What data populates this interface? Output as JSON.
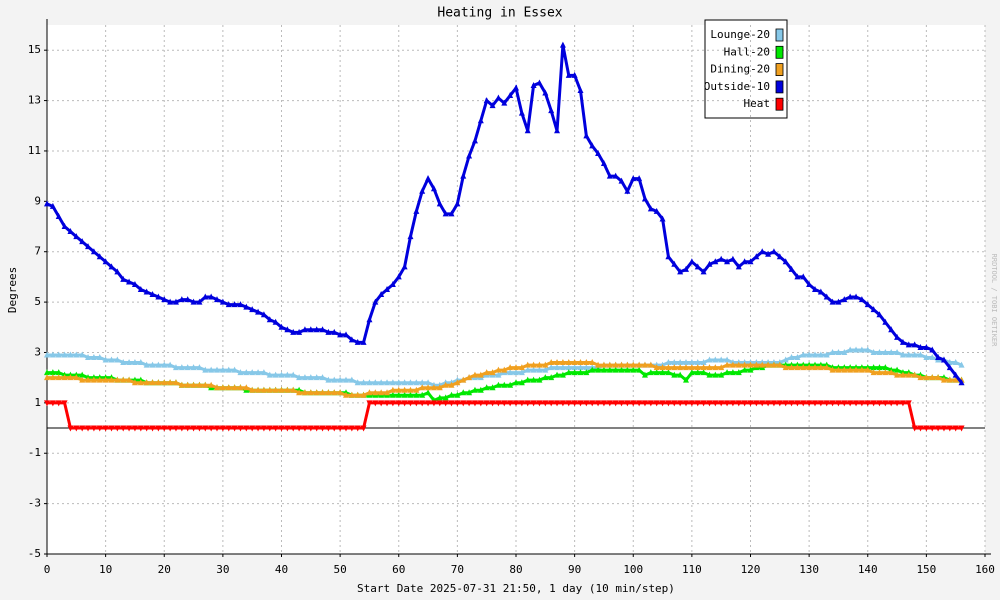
{
  "chart_data": {
    "type": "line",
    "title": "Heating in Essex",
    "y_label": "Degrees",
    "x_label": "Start Date 2025-07-31 21:50, 1 day (10 min/step)",
    "watermark": "RRDTOOL / TOBI OETIKER",
    "xlim": [
      0,
      160
    ],
    "ylim": [
      -5,
      16
    ],
    "xticks": [
      0,
      10,
      20,
      30,
      40,
      50,
      60,
      70,
      80,
      90,
      100,
      110,
      120,
      130,
      140,
      150,
      160
    ],
    "yticks": [
      -5,
      -3,
      -1,
      1,
      3,
      5,
      7,
      9,
      11,
      13,
      15
    ],
    "grid": true,
    "legend": "top-right",
    "x": [
      0,
      1,
      2,
      3,
      4,
      5,
      6,
      7,
      8,
      9,
      10,
      11,
      12,
      13,
      14,
      15,
      16,
      17,
      18,
      19,
      20,
      21,
      22,
      23,
      24,
      25,
      26,
      27,
      28,
      29,
      30,
      31,
      32,
      33,
      34,
      35,
      36,
      37,
      38,
      39,
      40,
      41,
      42,
      43,
      44,
      45,
      46,
      47,
      48,
      49,
      50,
      51,
      52,
      53,
      54,
      55,
      56,
      57,
      58,
      59,
      60,
      61,
      62,
      63,
      64,
      65,
      66,
      67,
      68,
      69,
      70,
      71,
      72,
      73,
      74,
      75,
      76,
      77,
      78,
      79,
      80,
      81,
      82,
      83,
      84,
      85,
      86,
      87,
      88,
      89,
      90,
      91,
      92,
      93,
      94,
      95,
      96,
      97,
      98,
      99,
      100,
      101,
      102,
      103,
      104,
      105,
      106,
      107,
      108,
      109,
      110,
      111,
      112,
      113,
      114,
      115,
      116,
      117,
      118,
      119,
      120,
      121,
      122,
      123,
      124,
      125,
      126,
      127,
      128,
      129,
      130,
      131,
      132,
      133,
      134,
      135,
      136,
      137,
      138,
      139,
      140,
      141,
      142,
      143,
      144,
      145,
      146,
      147,
      148,
      149,
      150,
      151,
      152,
      153,
      154,
      155,
      156
    ],
    "series": [
      {
        "name": "Lounge-20",
        "color": "#87c8e8",
        "marker": "triangle-up",
        "values": [
          2.9,
          2.9,
          2.9,
          2.9,
          2.9,
          2.9,
          2.9,
          2.8,
          2.8,
          2.8,
          2.7,
          2.7,
          2.7,
          2.6,
          2.6,
          2.6,
          2.6,
          2.5,
          2.5,
          2.5,
          2.5,
          2.5,
          2.4,
          2.4,
          2.4,
          2.4,
          2.4,
          2.3,
          2.3,
          2.3,
          2.3,
          2.3,
          2.3,
          2.2,
          2.2,
          2.2,
          2.2,
          2.2,
          2.1,
          2.1,
          2.1,
          2.1,
          2.1,
          2.0,
          2.0,
          2.0,
          2.0,
          2.0,
          1.9,
          1.9,
          1.9,
          1.9,
          1.9,
          1.8,
          1.8,
          1.8,
          1.8,
          1.8,
          1.8,
          1.8,
          1.8,
          1.8,
          1.8,
          1.8,
          1.8,
          1.8,
          1.7,
          1.7,
          1.8,
          1.8,
          1.9,
          1.9,
          2.0,
          2.0,
          2.0,
          2.1,
          2.1,
          2.1,
          2.2,
          2.2,
          2.2,
          2.2,
          2.3,
          2.3,
          2.3,
          2.3,
          2.4,
          2.4,
          2.4,
          2.4,
          2.4,
          2.4,
          2.4,
          2.4,
          2.4,
          2.5,
          2.5,
          2.5,
          2.5,
          2.5,
          2.5,
          2.5,
          2.5,
          2.5,
          2.5,
          2.5,
          2.6,
          2.6,
          2.6,
          2.6,
          2.6,
          2.6,
          2.6,
          2.7,
          2.7,
          2.7,
          2.7,
          2.6,
          2.6,
          2.6,
          2.6,
          2.6,
          2.6,
          2.6,
          2.6,
          2.6,
          2.7,
          2.8,
          2.8,
          2.9,
          2.9,
          2.9,
          2.9,
          2.9,
          3.0,
          3.0,
          3.0,
          3.1,
          3.1,
          3.1,
          3.1,
          3.0,
          3.0,
          3.0,
          3.0,
          3.0,
          2.9,
          2.9,
          2.9,
          2.9,
          2.8,
          2.8,
          2.7,
          2.7,
          2.6,
          2.6,
          2.5
        ]
      },
      {
        "name": "Hall-20",
        "color": "#00e800",
        "marker": "triangle-up",
        "values": [
          2.2,
          2.2,
          2.2,
          2.1,
          2.1,
          2.1,
          2.1,
          2.0,
          2.0,
          2.0,
          2.0,
          2.0,
          1.9,
          1.9,
          1.9,
          1.9,
          1.9,
          1.8,
          1.8,
          1.8,
          1.8,
          1.8,
          1.8,
          1.7,
          1.7,
          1.7,
          1.7,
          1.7,
          1.6,
          1.6,
          1.6,
          1.6,
          1.6,
          1.6,
          1.5,
          1.5,
          1.5,
          1.5,
          1.5,
          1.5,
          1.5,
          1.5,
          1.5,
          1.5,
          1.4,
          1.4,
          1.4,
          1.4,
          1.4,
          1.4,
          1.4,
          1.4,
          1.3,
          1.3,
          1.3,
          1.3,
          1.3,
          1.3,
          1.3,
          1.3,
          1.3,
          1.3,
          1.3,
          1.3,
          1.3,
          1.4,
          1.1,
          1.2,
          1.2,
          1.3,
          1.3,
          1.4,
          1.4,
          1.5,
          1.5,
          1.6,
          1.6,
          1.7,
          1.7,
          1.7,
          1.8,
          1.8,
          1.9,
          1.9,
          1.9,
          2.0,
          2.0,
          2.1,
          2.1,
          2.2,
          2.2,
          2.2,
          2.2,
          2.3,
          2.3,
          2.3,
          2.3,
          2.3,
          2.3,
          2.3,
          2.3,
          2.3,
          2.1,
          2.2,
          2.2,
          2.2,
          2.2,
          2.1,
          2.1,
          1.9,
          2.2,
          2.2,
          2.2,
          2.1,
          2.1,
          2.1,
          2.2,
          2.2,
          2.2,
          2.3,
          2.3,
          2.4,
          2.4,
          2.5,
          2.5,
          2.5,
          2.5,
          2.5,
          2.5,
          2.5,
          2.5,
          2.5,
          2.5,
          2.5,
          2.4,
          2.4,
          2.4,
          2.4,
          2.4,
          2.4,
          2.4,
          2.4,
          2.4,
          2.4,
          2.3,
          2.3,
          2.2,
          2.2,
          2.1,
          2.1,
          2.0,
          2.0,
          2.0,
          2.0,
          1.9,
          1.9,
          1.9
        ]
      },
      {
        "name": "Dining-20",
        "color": "#f0a020",
        "marker": "triangle-up",
        "values": [
          2.0,
          2.0,
          2.0,
          2.0,
          2.0,
          2.0,
          1.9,
          1.9,
          1.9,
          1.9,
          1.9,
          1.9,
          1.9,
          1.9,
          1.9,
          1.8,
          1.8,
          1.8,
          1.8,
          1.8,
          1.8,
          1.8,
          1.8,
          1.7,
          1.7,
          1.7,
          1.7,
          1.7,
          1.7,
          1.6,
          1.6,
          1.6,
          1.6,
          1.6,
          1.6,
          1.5,
          1.5,
          1.5,
          1.5,
          1.5,
          1.5,
          1.5,
          1.5,
          1.4,
          1.4,
          1.4,
          1.4,
          1.4,
          1.4,
          1.4,
          1.4,
          1.3,
          1.3,
          1.3,
          1.3,
          1.4,
          1.4,
          1.4,
          1.4,
          1.5,
          1.5,
          1.5,
          1.5,
          1.5,
          1.6,
          1.6,
          1.6,
          1.6,
          1.7,
          1.7,
          1.8,
          1.9,
          2.0,
          2.1,
          2.1,
          2.2,
          2.2,
          2.3,
          2.3,
          2.4,
          2.4,
          2.4,
          2.5,
          2.5,
          2.5,
          2.5,
          2.6,
          2.6,
          2.6,
          2.6,
          2.6,
          2.6,
          2.6,
          2.6,
          2.5,
          2.5,
          2.5,
          2.5,
          2.5,
          2.5,
          2.5,
          2.5,
          2.5,
          2.5,
          2.4,
          2.4,
          2.4,
          2.4,
          2.4,
          2.4,
          2.4,
          2.4,
          2.4,
          2.4,
          2.4,
          2.4,
          2.5,
          2.5,
          2.5,
          2.5,
          2.5,
          2.5,
          2.5,
          2.5,
          2.5,
          2.5,
          2.4,
          2.4,
          2.4,
          2.4,
          2.4,
          2.4,
          2.4,
          2.4,
          2.3,
          2.3,
          2.3,
          2.3,
          2.3,
          2.3,
          2.3,
          2.2,
          2.2,
          2.2,
          2.2,
          2.1,
          2.1,
          2.1,
          2.1,
          2.0,
          2.0,
          2.0,
          2.0,
          1.9,
          1.9,
          1.9,
          1.9
        ]
      },
      {
        "name": "Outside-10",
        "color": "#0000dd",
        "marker": "triangle-up",
        "values": [
          8.9,
          8.8,
          8.4,
          8.0,
          7.8,
          7.6,
          7.4,
          7.2,
          7.0,
          6.8,
          6.6,
          6.4,
          6.2,
          5.9,
          5.8,
          5.7,
          5.5,
          5.4,
          5.3,
          5.2,
          5.1,
          5.0,
          5.0,
          5.1,
          5.1,
          5.0,
          5.0,
          5.2,
          5.2,
          5.1,
          5.0,
          4.9,
          4.9,
          4.9,
          4.8,
          4.7,
          4.6,
          4.5,
          4.3,
          4.2,
          4.0,
          3.9,
          3.8,
          3.8,
          3.9,
          3.9,
          3.9,
          3.9,
          3.8,
          3.8,
          3.7,
          3.7,
          3.5,
          3.4,
          3.4,
          4.3,
          5.0,
          5.3,
          5.5,
          5.7,
          6.0,
          6.4,
          7.6,
          8.6,
          9.4,
          9.9,
          9.5,
          8.9,
          8.5,
          8.5,
          8.9,
          10.0,
          10.8,
          11.4,
          12.2,
          13.0,
          12.8,
          13.1,
          12.9,
          13.2,
          13.5,
          12.5,
          11.8,
          13.6,
          13.7,
          13.3,
          12.6,
          11.8,
          15.2,
          14.0,
          14.0,
          13.4,
          11.6,
          11.2,
          10.9,
          10.5,
          10.0,
          10.0,
          9.8,
          9.4,
          9.9,
          9.9,
          9.1,
          8.7,
          8.6,
          8.3,
          6.8,
          6.5,
          6.2,
          6.3,
          6.6,
          6.4,
          6.2,
          6.5,
          6.6,
          6.7,
          6.6,
          6.7,
          6.4,
          6.6,
          6.6,
          6.8,
          7.0,
          6.9,
          7.0,
          6.8,
          6.6,
          6.3,
          6.0,
          6.0,
          5.7,
          5.5,
          5.4,
          5.2,
          5.0,
          5.0,
          5.1,
          5.2,
          5.2,
          5.1,
          4.9,
          4.7,
          4.5,
          4.2,
          3.9,
          3.6,
          3.4,
          3.3,
          3.3,
          3.2,
          3.2,
          3.1,
          2.8,
          2.7,
          2.4,
          2.1,
          1.8
        ]
      },
      {
        "name": "Heat",
        "color": "#ff0000",
        "marker": "triangle-down",
        "values": [
          1,
          1,
          1,
          1,
          0,
          0,
          0,
          0,
          0,
          0,
          0,
          0,
          0,
          0,
          0,
          0,
          0,
          0,
          0,
          0,
          0,
          0,
          0,
          0,
          0,
          0,
          0,
          0,
          0,
          0,
          0,
          0,
          0,
          0,
          0,
          0,
          0,
          0,
          0,
          0,
          0,
          0,
          0,
          0,
          0,
          0,
          0,
          0,
          0,
          0,
          0,
          0,
          0,
          0,
          0,
          1,
          1,
          1,
          1,
          1,
          1,
          1,
          1,
          1,
          1,
          1,
          1,
          1,
          1,
          1,
          1,
          1,
          1,
          1,
          1,
          1,
          1,
          1,
          1,
          1,
          1,
          1,
          1,
          1,
          1,
          1,
          1,
          1,
          1,
          1,
          1,
          1,
          1,
          1,
          1,
          1,
          1,
          1,
          1,
          1,
          1,
          1,
          1,
          1,
          1,
          1,
          1,
          1,
          1,
          1,
          1,
          1,
          1,
          1,
          1,
          1,
          1,
          1,
          1,
          1,
          1,
          1,
          1,
          1,
          1,
          1,
          1,
          1,
          1,
          1,
          1,
          1,
          1,
          1,
          1,
          1,
          1,
          1,
          1,
          1,
          1,
          1,
          1,
          1,
          1,
          1,
          1,
          1,
          0,
          0,
          0,
          0,
          0,
          0,
          0,
          0,
          0
        ]
      }
    ]
  }
}
